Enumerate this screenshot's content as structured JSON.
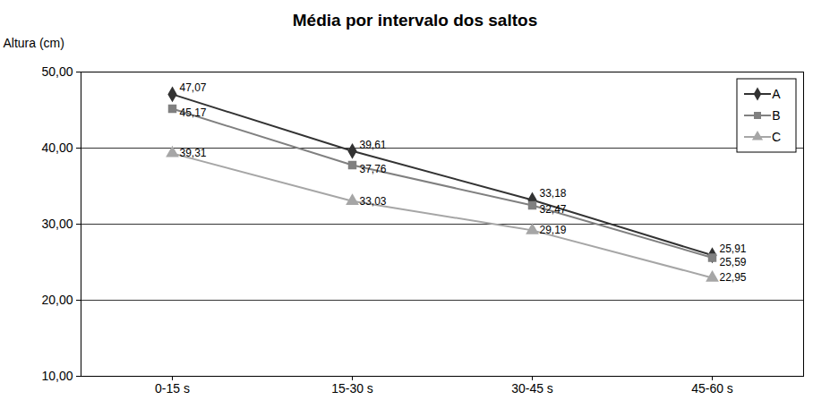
{
  "chart_data": {
    "type": "line",
    "title": "Média por intervalo dos saltos",
    "y_label": "Altura (cm)",
    "categories": [
      "0-15 s",
      "15-30 s",
      "30-45 s",
      "45-60 s"
    ],
    "series": [
      {
        "name": "A",
        "color": "#333333",
        "marker": "diamond",
        "values": [
          47.07,
          39.61,
          33.18,
          25.91
        ],
        "value_labels": [
          "47,07",
          "39,61",
          "33,18",
          "25,91"
        ]
      },
      {
        "name": "B",
        "color": "#808080",
        "marker": "square",
        "values": [
          45.17,
          37.76,
          32.47,
          25.59
        ],
        "value_labels": [
          "45,17",
          "37,76",
          "32,47",
          "25,59"
        ]
      },
      {
        "name": "C",
        "color": "#a6a6a6",
        "marker": "triangle",
        "values": [
          39.31,
          33.03,
          29.19,
          22.95
        ],
        "value_labels": [
          "39,31",
          "33,03",
          "29,19",
          "22,95"
        ]
      }
    ],
    "ylim": [
      10,
      50
    ],
    "yticks": [
      {
        "value": 10,
        "label": "10,00"
      },
      {
        "value": 20,
        "label": "20,00"
      },
      {
        "value": 30,
        "label": "30,00"
      },
      {
        "value": 40,
        "label": "40,00"
      },
      {
        "value": 50,
        "label": "50,00"
      }
    ],
    "grid": true,
    "legend": "top-right",
    "data_labels": true
  }
}
